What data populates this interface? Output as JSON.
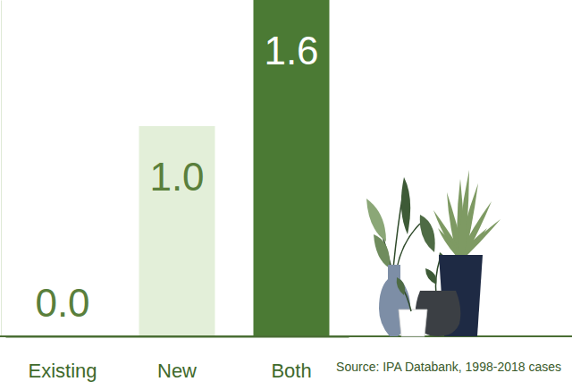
{
  "chart_data": {
    "type": "bar",
    "categories": [
      "Existing",
      "New",
      "Both"
    ],
    "values": [
      0.0,
      1.0,
      1.6
    ],
    "value_labels": [
      "0.0",
      "1.0",
      "1.6"
    ],
    "colors": [
      "#e3efd9",
      "#e3efd9",
      "#4b7a34"
    ],
    "ylim": [
      0,
      1.6
    ],
    "data_labels": true,
    "tick_labels": "x",
    "annotations": [
      "Source: IPA Databank, 1998-2018 cases"
    ]
  }
}
